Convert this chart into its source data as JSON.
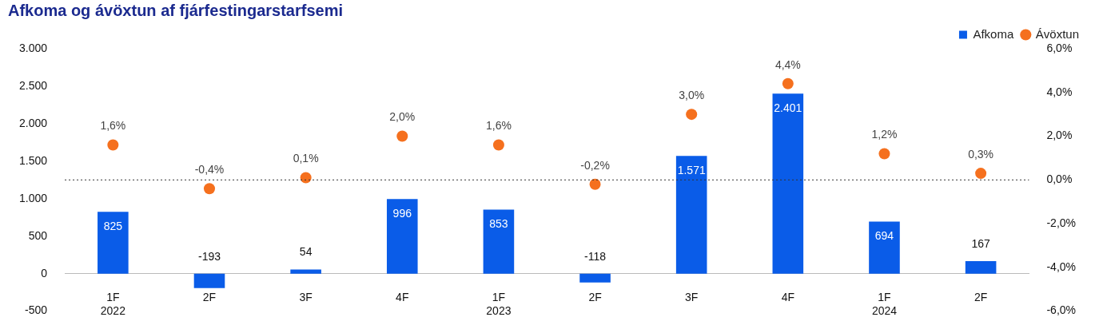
{
  "chart_data": {
    "type": "bar",
    "title": "Afkoma og ávöxtun af fjárfestingarstarfsemi",
    "categories": [
      "1F\n2022",
      "2F",
      "3F",
      "4F",
      "1F\n2023",
      "2F",
      "3F",
      "4F",
      "1F\n2024",
      "2F"
    ],
    "series": [
      {
        "name": "Afkoma",
        "color": "#0a5ce8",
        "values": [
          825,
          -193,
          54,
          996,
          853,
          -118,
          1571,
          2401,
          694,
          167
        ],
        "value_labels": [
          "825",
          "-193",
          "54",
          "996",
          "853",
          "-118",
          "1.571",
          "2.401",
          "694",
          "167"
        ]
      },
      {
        "name": "Ávöxtun",
        "type": "scatter",
        "axis": "y2",
        "color": "#f5701e",
        "values": [
          1.6,
          -0.4,
          0.1,
          2.0,
          1.6,
          -0.2,
          3.0,
          4.4,
          1.2,
          0.3
        ],
        "value_labels": [
          "1,6%",
          "-0,4%",
          "0,1%",
          "2,0%",
          "1,6%",
          "-0,2%",
          "3,0%",
          "4,4%",
          "1,2%",
          "0,3%"
        ]
      }
    ],
    "ylim": [
      -500,
      3000
    ],
    "yticks": [
      -500,
      0,
      {
        "value": 500,
        "label": "500"
      },
      {
        "value": 1000,
        "label": "1.000"
      },
      {
        "value": 1500,
        "label": "1.500"
      },
      {
        "value": 2000,
        "label": "2.000"
      },
      {
        "value": 2500,
        "label": "2.500"
      },
      {
        "value": 3000,
        "label": "3.000"
      }
    ],
    "y2lim": [
      -6,
      6
    ],
    "y2ticks": [
      {
        "value": -6,
        "label": "-6,0%"
      },
      {
        "value": -4,
        "label": "-4,0%"
      },
      {
        "value": -2,
        "label": "-2,0%"
      },
      {
        "value": 0,
        "label": "0,0%"
      },
      {
        "value": 2,
        "label": "2,0%"
      },
      {
        "value": 4,
        "label": "4,0%"
      },
      {
        "value": 6,
        "label": "6,0%"
      }
    ],
    "ref_lines": [
      {
        "axis": "y2",
        "value": 0,
        "line_style": "dotted",
        "color": "#333333"
      }
    ],
    "grid": false,
    "legend": "top right",
    "marker": "circle"
  }
}
